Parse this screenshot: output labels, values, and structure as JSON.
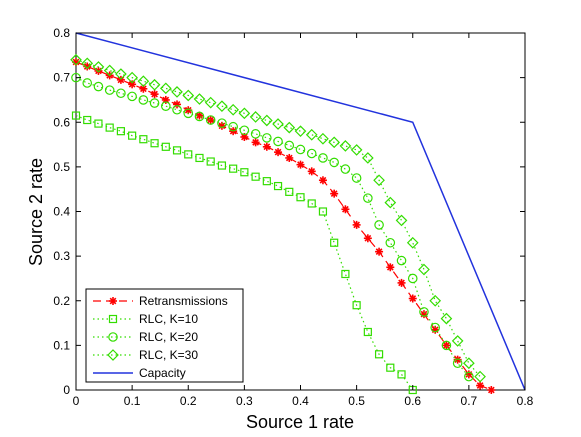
{
  "chart_data": {
    "type": "line",
    "title": "",
    "xlabel": "Source 1 rate",
    "ylabel": "Source 2 rate",
    "xlim": [
      0,
      0.8
    ],
    "ylim": [
      0,
      0.8
    ],
    "xticks": [
      "0",
      "0.1",
      "0.2",
      "0.3",
      "0.4",
      "0.5",
      "0.6",
      "0.7",
      "0.8"
    ],
    "yticks": [
      "0",
      "0.1",
      "0.2",
      "0.3",
      "0.4",
      "0.5",
      "0.6",
      "0.7",
      "0.8"
    ],
    "grid": false,
    "legend_position": "bottom-left",
    "series": [
      {
        "name": "Retransmissions",
        "color": "#ff0000",
        "line_style": "dashed",
        "marker": "asterisk",
        "x": [
          0,
          0.02,
          0.04,
          0.06,
          0.08,
          0.1,
          0.12,
          0.14,
          0.16,
          0.18,
          0.2,
          0.22,
          0.24,
          0.26,
          0.28,
          0.3,
          0.32,
          0.34,
          0.36,
          0.38,
          0.4,
          0.42,
          0.44,
          0.46,
          0.48,
          0.5,
          0.52,
          0.54,
          0.56,
          0.58,
          0.6,
          0.62,
          0.64,
          0.66,
          0.68,
          0.7,
          0.72,
          0.74
        ],
        "y": [
          0.735,
          0.725,
          0.715,
          0.705,
          0.695,
          0.685,
          0.675,
          0.663,
          0.65,
          0.64,
          0.627,
          0.615,
          0.605,
          0.592,
          0.58,
          0.567,
          0.555,
          0.545,
          0.533,
          0.52,
          0.505,
          0.49,
          0.47,
          0.44,
          0.405,
          0.37,
          0.34,
          0.31,
          0.275,
          0.24,
          0.205,
          0.17,
          0.135,
          0.1,
          0.068,
          0.035,
          0.01,
          0
        ]
      },
      {
        "name": "RLC, K=10",
        "color": "#33dd00",
        "line_style": "dotted",
        "marker": "square",
        "x": [
          0,
          0.02,
          0.04,
          0.06,
          0.08,
          0.1,
          0.12,
          0.14,
          0.16,
          0.18,
          0.2,
          0.22,
          0.24,
          0.26,
          0.28,
          0.3,
          0.32,
          0.34,
          0.36,
          0.38,
          0.4,
          0.42,
          0.44,
          0.46,
          0.48,
          0.5,
          0.52,
          0.54,
          0.56,
          0.58,
          0.6
        ],
        "y": [
          0.615,
          0.605,
          0.597,
          0.588,
          0.58,
          0.57,
          0.562,
          0.553,
          0.545,
          0.537,
          0.528,
          0.52,
          0.512,
          0.503,
          0.496,
          0.488,
          0.478,
          0.468,
          0.457,
          0.444,
          0.432,
          0.418,
          0.4,
          0.33,
          0.26,
          0.19,
          0.13,
          0.08,
          0.05,
          0.035,
          0
        ]
      },
      {
        "name": "RLC, K=20",
        "color": "#33dd00",
        "line_style": "dotted",
        "marker": "circle",
        "x": [
          0,
          0.02,
          0.04,
          0.06,
          0.08,
          0.1,
          0.12,
          0.14,
          0.16,
          0.18,
          0.2,
          0.22,
          0.24,
          0.26,
          0.28,
          0.3,
          0.32,
          0.34,
          0.36,
          0.38,
          0.4,
          0.42,
          0.44,
          0.46,
          0.48,
          0.5,
          0.52,
          0.54,
          0.56,
          0.58,
          0.6,
          0.62,
          0.64,
          0.66,
          0.68,
          0.7
        ],
        "y": [
          0.7,
          0.688,
          0.68,
          0.672,
          0.665,
          0.658,
          0.65,
          0.643,
          0.636,
          0.628,
          0.62,
          0.613,
          0.605,
          0.598,
          0.59,
          0.582,
          0.574,
          0.565,
          0.557,
          0.548,
          0.539,
          0.53,
          0.52,
          0.51,
          0.495,
          0.475,
          0.43,
          0.37,
          0.33,
          0.29,
          0.25,
          0.175,
          0.14,
          0.1,
          0.06,
          0.03
        ]
      },
      {
        "name": "RLC, K=30",
        "color": "#33dd00",
        "line_style": "dotted",
        "marker": "diamond",
        "x": [
          0,
          0.02,
          0.04,
          0.06,
          0.08,
          0.1,
          0.12,
          0.14,
          0.16,
          0.18,
          0.2,
          0.22,
          0.24,
          0.26,
          0.28,
          0.3,
          0.32,
          0.34,
          0.36,
          0.38,
          0.4,
          0.42,
          0.44,
          0.46,
          0.48,
          0.5,
          0.52,
          0.54,
          0.56,
          0.58,
          0.6,
          0.62,
          0.64,
          0.66,
          0.68,
          0.7,
          0.72
        ],
        "y": [
          0.74,
          0.732,
          0.724,
          0.716,
          0.708,
          0.7,
          0.692,
          0.684,
          0.676,
          0.668,
          0.66,
          0.652,
          0.644,
          0.636,
          0.628,
          0.62,
          0.612,
          0.604,
          0.596,
          0.588,
          0.58,
          0.572,
          0.563,
          0.555,
          0.547,
          0.538,
          0.52,
          0.47,
          0.42,
          0.38,
          0.33,
          0.27,
          0.2,
          0.16,
          0.11,
          0.06,
          0.03
        ]
      },
      {
        "name": "Capacity",
        "color": "#2233dd",
        "line_style": "solid",
        "marker": "none",
        "x": [
          0,
          0.6,
          0.8
        ],
        "y": [
          0.8,
          0.6,
          0
        ]
      }
    ]
  }
}
